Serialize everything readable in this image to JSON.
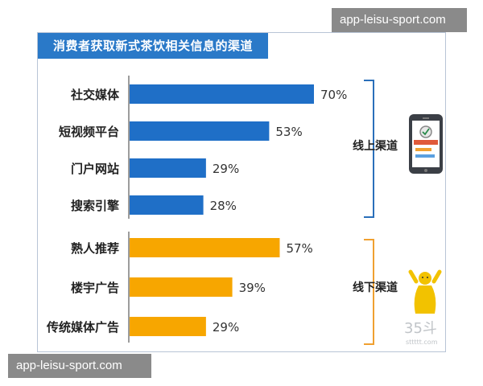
{
  "watermark": {
    "top": "app-leisu-sport.com",
    "bottom": "app-leisu-sport.com"
  },
  "colors": {
    "online": "#1f6fc7",
    "offline": "#f7a600",
    "title_bg": "#2a79c8",
    "bracket_online": "#2a6fba",
    "bracket_offline": "#f0a030"
  },
  "chart_data": {
    "type": "bar",
    "orientation": "horizontal",
    "title": "消费者获取新式茶饮相关信息的渠道",
    "categories": [
      "社交媒体",
      "短视频平台",
      "门户网站",
      "搜索引擎",
      "熟人推荐",
      "楼宇广告",
      "传统媒体广告"
    ],
    "values": [
      70,
      53,
      29,
      28,
      57,
      39,
      29
    ],
    "value_labels": [
      "70%",
      "53%",
      "29%",
      "28%",
      "57%",
      "39%",
      "29%"
    ],
    "unit": "%",
    "xlim": [
      0,
      70
    ],
    "groups": [
      {
        "name": "线上渠道",
        "categories": [
          "社交媒体",
          "短视频平台",
          "门户网站",
          "搜索引擎"
        ],
        "color": "#1f6fc7",
        "icon": "smartphone-icon"
      },
      {
        "name": "线下渠道",
        "categories": [
          "熟人推荐",
          "楼宇广告",
          "传统媒体广告"
        ],
        "color": "#f7a600",
        "icon": "person-cheering-icon"
      }
    ],
    "grid": false,
    "legend": "none"
  },
  "logo": {
    "text": "35斗",
    "subtext": "sttttt.com"
  }
}
